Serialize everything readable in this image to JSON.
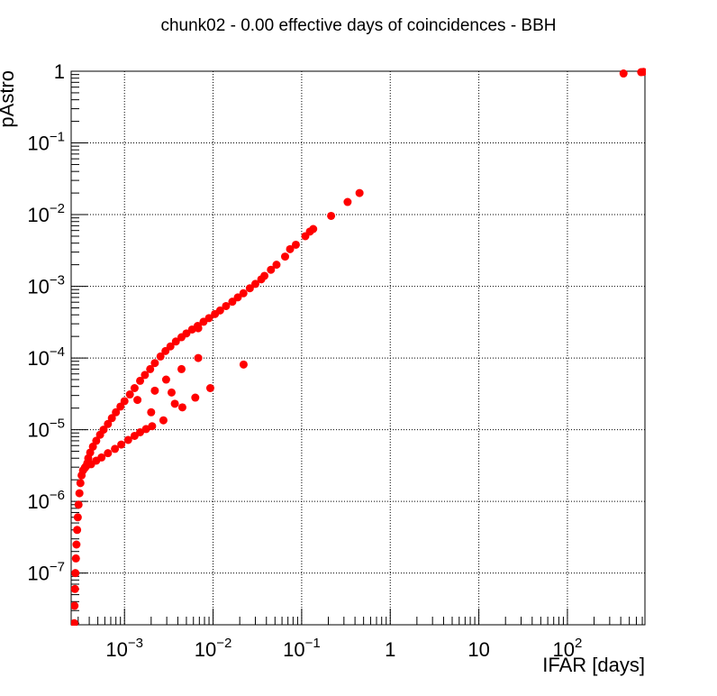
{
  "chart_data": {
    "type": "scatter",
    "title": "chunk02 - 0.00 effective days of coincidences - BBH",
    "xlabel": "IFAR [days]",
    "ylabel": "pAstro",
    "xscale": "log",
    "yscale": "log",
    "xlim": [
      0.00025,
      750
    ],
    "ylim": [
      1.9e-08,
      1.0
    ],
    "grid": true,
    "marker_color": "#ff0000",
    "x_ticks": [
      {
        "value": 0.001,
        "base": "10",
        "exp": "−3"
      },
      {
        "value": 0.01,
        "base": "10",
        "exp": "−2"
      },
      {
        "value": 0.1,
        "base": "10",
        "exp": "−1"
      },
      {
        "value": 1,
        "base": "1",
        "exp": ""
      },
      {
        "value": 10,
        "base": "10",
        "exp": ""
      },
      {
        "value": 100,
        "base": "10",
        "exp": "2"
      }
    ],
    "y_ticks": [
      {
        "value": 1e-07,
        "base": "10",
        "exp": "−7"
      },
      {
        "value": 1e-06,
        "base": "10",
        "exp": "−6"
      },
      {
        "value": 1e-05,
        "base": "10",
        "exp": "−5"
      },
      {
        "value": 0.0001,
        "base": "10",
        "exp": "−4"
      },
      {
        "value": 0.001,
        "base": "10",
        "exp": "−3"
      },
      {
        "value": 0.01,
        "base": "10",
        "exp": "−2"
      },
      {
        "value": 0.1,
        "base": "10",
        "exp": "−1"
      },
      {
        "value": 1,
        "base": "1",
        "exp": ""
      }
    ],
    "series": [
      {
        "points": [
          [
            0.000271,
            2e-08
          ],
          [
            0.000273,
            3.5e-08
          ],
          [
            0.000276,
            6e-08
          ],
          [
            0.000279,
            1e-07
          ],
          [
            0.000283,
            1.6e-07
          ],
          [
            0.000287,
            2.5e-07
          ],
          [
            0.000292,
            4e-07
          ],
          [
            0.000297,
            6e-07
          ],
          [
            0.000303,
            9e-07
          ],
          [
            0.00031,
            1.3e-06
          ],
          [
            0.000318,
            1.8e-06
          ],
          [
            0.000328,
            2.3e-06
          ],
          [
            0.00034,
            2.7e-06
          ],
          [
            0.000355,
            2.9e-06
          ],
          [
            0.00037,
            3.1e-06
          ],
          [
            0.00038,
            3.4e-06
          ],
          [
            0.00039,
            4e-06
          ],
          [
            0.00041,
            4.8e-06
          ],
          [
            0.00044,
            5.8e-06
          ],
          [
            0.00048,
            7e-06
          ],
          [
            0.00053,
            8.5e-06
          ],
          [
            0.00058,
            1e-05
          ],
          [
            0.00065,
            1.2e-05
          ],
          [
            0.00072,
            1.45e-05
          ],
          [
            0.0008,
            1.75e-05
          ],
          [
            0.0009,
            2.1e-05
          ],
          [
            0.001,
            2.5e-05
          ],
          [
            0.00115,
            3.1e-05
          ],
          [
            0.0013,
            3.8e-05
          ],
          [
            0.0015,
            4.8e-05
          ],
          [
            0.0017,
            5.8e-05
          ],
          [
            0.00195,
            7e-05
          ],
          [
            0.0022,
            8.5e-05
          ],
          [
            0.00255,
            0.000105
          ],
          [
            0.0029,
            0.000125
          ],
          [
            0.0033,
            0.000145
          ],
          [
            0.0038,
            0.00017
          ],
          [
            0.0044,
            0.000195
          ],
          [
            0.005,
            0.00022
          ],
          [
            0.0058,
            0.00025
          ],
          [
            0.0067,
            0.00028
          ],
          [
            0.0078,
            0.00032
          ],
          [
            0.009,
            0.00036
          ],
          [
            0.0105,
            0.00041
          ],
          [
            0.012,
            0.00046
          ],
          [
            0.014,
            0.00053
          ],
          [
            0.0165,
            0.00061
          ],
          [
            0.019,
            0.0007
          ],
          [
            0.022,
            0.0008
          ],
          [
            0.026,
            0.00094
          ],
          [
            0.03,
            0.00108
          ],
          [
            0.035,
            0.00125
          ],
          [
            0.038,
            0.0014
          ],
          [
            0.045,
            0.0017
          ],
          [
            0.052,
            0.002
          ],
          [
            0.065,
            0.0026
          ],
          [
            0.074,
            0.0033
          ],
          [
            0.086,
            0.0038
          ],
          [
            0.11,
            0.005
          ],
          [
            0.124,
            0.0058
          ],
          [
            0.135,
            0.0063
          ],
          [
            0.215,
            0.0096
          ],
          [
            0.33,
            0.015
          ],
          [
            0.45,
            0.02
          ],
          [
            0.00036,
            3e-06
          ],
          [
            0.00042,
            3.3e-06
          ],
          [
            0.00048,
            3.7e-06
          ],
          [
            0.00055,
            4.1e-06
          ],
          [
            0.00065,
            4.7e-06
          ],
          [
            0.00078,
            5.4e-06
          ],
          [
            0.00092,
            6.2e-06
          ],
          [
            0.0011,
            7.2e-06
          ],
          [
            0.0013,
            8.2e-06
          ],
          [
            0.0015,
            9.2e-06
          ],
          [
            0.00175,
            1.02e-05
          ],
          [
            0.00205,
            1.12e-05
          ],
          [
            0.0014,
            2.6e-05
          ],
          [
            0.002,
            1.75e-05
          ],
          [
            0.0022,
            3.5e-05
          ],
          [
            0.00275,
            1.35e-05
          ],
          [
            0.00295,
            5e-05
          ],
          [
            0.0034,
            3.3e-05
          ],
          [
            0.0037,
            2.3e-05
          ],
          [
            0.0044,
            7e-05
          ],
          [
            0.0045,
            2.05e-05
          ],
          [
            0.0063,
            2.8e-05
          ],
          [
            0.0068,
            0.0001
          ],
          [
            0.0093,
            3.8e-05
          ],
          [
            0.0068,
            0.00026
          ],
          [
            0.0221,
            8.1e-05
          ],
          [
            430,
            0.93
          ],
          [
            680,
            0.97
          ],
          [
            720,
            0.98
          ]
        ]
      }
    ]
  }
}
